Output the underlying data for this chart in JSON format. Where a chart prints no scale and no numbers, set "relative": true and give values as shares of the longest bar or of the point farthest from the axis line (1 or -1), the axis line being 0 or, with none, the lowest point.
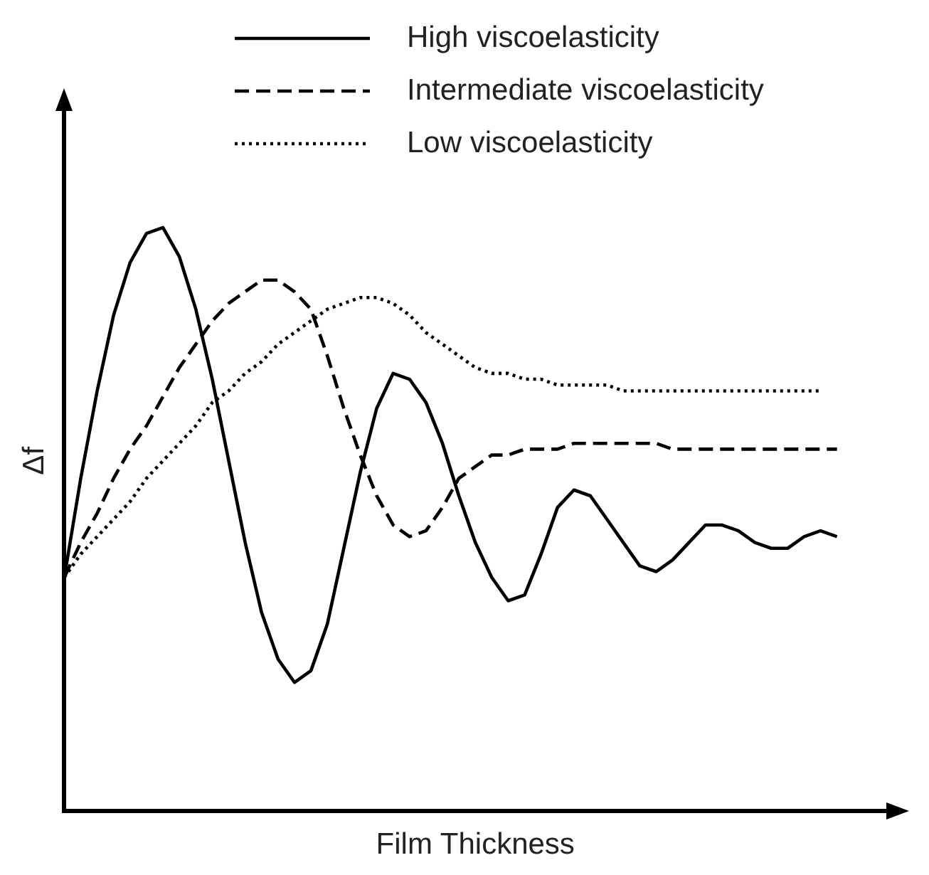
{
  "chart_data": {
    "type": "line",
    "relative": true,
    "xlabel": "Film Thickness",
    "ylabel": "Δf",
    "legend": "top right",
    "grid": false,
    "marker": "none",
    "categories": [
      null,
      null,
      null,
      null,
      null,
      null,
      null,
      null,
      null,
      null,
      null,
      null,
      null,
      null,
      null,
      null,
      null,
      null,
      null,
      null,
      null,
      null,
      null,
      null,
      null,
      null,
      null,
      null,
      null,
      null,
      null,
      null,
      null,
      null,
      null,
      null,
      null,
      null,
      null,
      null,
      null,
      null,
      null,
      null,
      null,
      null,
      null,
      null,
      null,
      null,
      null
    ],
    "series": [
      {
        "name": "High viscoelasticity",
        "color": "#000000",
        "line_style": "solid",
        "values": [
          0.4,
          0.57,
          0.72,
          0.85,
          0.94,
          0.99,
          1,
          0.95,
          0.86,
          0.74,
          0.6,
          0.46,
          0.34,
          0.26,
          0.22,
          0.24,
          0.32,
          0.45,
          0.58,
          0.69,
          0.75,
          0.74,
          0.7,
          0.63,
          0.54,
          0.46,
          0.4,
          0.36,
          0.37,
          0.44,
          0.52,
          0.55,
          0.54,
          0.5,
          0.46,
          0.42,
          0.41,
          0.43,
          0.46,
          0.49,
          0.49,
          0.48,
          0.46,
          0.45,
          0.45,
          0.47,
          0.48,
          0.47,
          null,
          null,
          null
        ]
      },
      {
        "name": "Intermediate viscoelasticity",
        "color": "#000000",
        "line_style": "dashed",
        "values": [
          0.4,
          0.46,
          0.51,
          0.57,
          0.62,
          0.66,
          0.71,
          0.76,
          0.8,
          0.84,
          0.87,
          0.89,
          0.91,
          0.91,
          0.89,
          0.86,
          0.78,
          0.69,
          0.61,
          0.54,
          0.49,
          0.47,
          0.48,
          0.52,
          0.57,
          0.59,
          0.61,
          0.61,
          0.62,
          0.62,
          0.62,
          0.63,
          0.63,
          0.63,
          0.63,
          0.63,
          0.63,
          0.62,
          0.62,
          0.62,
          0.62,
          0.62,
          0.62,
          0.62,
          0.62,
          0.62,
          0.62,
          0.62,
          null,
          null,
          null
        ]
      },
      {
        "name": "Low viscoelasticity",
        "color": "#000000",
        "line_style": "dotted",
        "values": [
          0.4,
          0.44,
          0.47,
          0.5,
          0.53,
          0.57,
          0.6,
          0.63,
          0.66,
          0.7,
          0.72,
          0.75,
          0.77,
          0.8,
          0.82,
          0.84,
          0.86,
          0.87,
          0.88,
          0.88,
          0.87,
          0.85,
          0.82,
          0.8,
          0.78,
          0.76,
          0.75,
          0.75,
          0.74,
          0.74,
          0.73,
          0.73,
          0.73,
          0.73,
          0.72,
          0.72,
          0.72,
          0.72,
          0.72,
          0.72,
          0.72,
          0.72,
          0.72,
          0.72,
          0.72,
          0.72,
          0.72,
          null,
          null,
          null,
          null
        ]
      }
    ]
  }
}
